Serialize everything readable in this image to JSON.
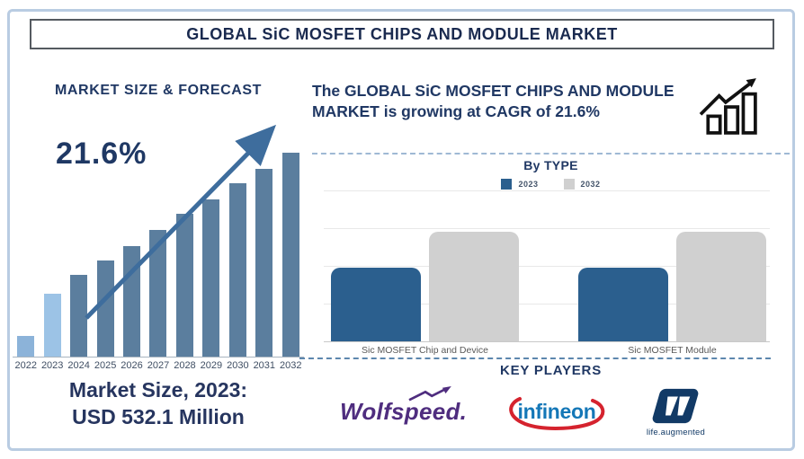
{
  "title": "GLOBAL SiC MOSFET CHIPS AND MODULE MARKET",
  "left_panel": {
    "heading": "MARKET SIZE & FORECAST",
    "cagr_label": "21.6%",
    "market_size_line1": "Market Size, 2023:",
    "market_size_line2": "USD 532.1 Million"
  },
  "right_panel": {
    "description": "The GLOBAL SiC MOSFET CHIPS AND MODULE MARKET is growing at CAGR of 21.6%",
    "by_type_heading": "By TYPE",
    "key_players_heading": "KEY PLAYERS",
    "players": {
      "wolfspeed": "Wolfspeed.",
      "infineon": "infineon",
      "st_caption": "life.augmented"
    }
  },
  "colors": {
    "navy_text": "#203864",
    "title_navy": "#1a2a4f",
    "frame_border": "#b9cce2",
    "forecast_bar_dark": "#5b7e9e",
    "forecast_bar_2022": "#8cb3d9",
    "forecast_bar_2023": "#9cc3e6",
    "trend_arrow_blue": "#3e6d9d",
    "series_2023_blue": "#2b5f8e",
    "series_2032_gray": "#d0d0d0",
    "wolfspeed_purple": "#4f2d7f",
    "infineon_blue": "#1477b7",
    "infineon_red": "#d5232e",
    "st_navy": "#123a66"
  },
  "chart_data": [
    {
      "type": "bar",
      "title": "MARKET SIZE & FORECAST",
      "categories": [
        "2022",
        "2023",
        "2024",
        "2025",
        "2026",
        "2027",
        "2028",
        "2029",
        "2030",
        "2031",
        "2032"
      ],
      "values": [
        10,
        31,
        40,
        47,
        54,
        62,
        70,
        77,
        85,
        92,
        100
      ],
      "unit": "relative height, no value axis shown",
      "annotation": "21.6%",
      "note": "Market Size, 2023: USD 532.1 Million",
      "bar_colors": {
        "2022": "#8cb3d9",
        "2023": "#9cc3e6",
        "default": "#5b7e9e"
      },
      "trend_arrow": true,
      "grid": "off"
    },
    {
      "type": "bar",
      "title": "By TYPE",
      "categories": [
        "Sic MOSFET Chip and Device",
        "Sic MOSFET Module"
      ],
      "series": [
        {
          "name": "2023",
          "color": "#2b5f8e",
          "values": [
            67,
            67
          ]
        },
        {
          "name": "2032",
          "color": "#d0d0d0",
          "values": [
            100,
            100
          ]
        }
      ],
      "unit": "relative height, no value axis shown",
      "legend_position": "top",
      "grid": "horizontal"
    }
  ]
}
